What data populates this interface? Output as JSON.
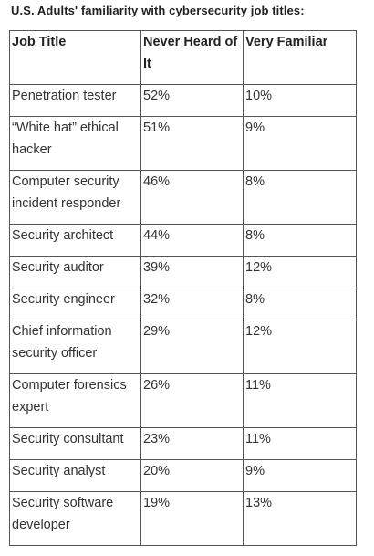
{
  "caption": "U.S. Adults' familiarity with cybersecurity job titles:",
  "headers": [
    "Job Title",
    "Never Heard of It",
    "Very Familiar"
  ],
  "rows": [
    {
      "title": "Penetration tester",
      "never": "52%",
      "familiar": "10%"
    },
    {
      "title": "“White hat” ethical hacker",
      "never": "51%",
      "familiar": "9%"
    },
    {
      "title": "Computer security incident responder",
      "never": "46%",
      "familiar": "8%"
    },
    {
      "title": "Security architect",
      "never": "44%",
      "familiar": "8%"
    },
    {
      "title": "Security auditor",
      "never": "39%",
      "familiar": "12%"
    },
    {
      "title": "Security engineer",
      "never": "32%",
      "familiar": "8%"
    },
    {
      "title": "Chief information security officer",
      "never": "29%",
      "familiar": "12%"
    },
    {
      "title": "Computer forensics expert",
      "never": "26%",
      "familiar": "11%"
    },
    {
      "title": "Security consultant",
      "never": "23%",
      "familiar": "11%"
    },
    {
      "title": "Security analyst",
      "never": "20%",
      "familiar": "9%"
    },
    {
      "title": "Security software developer",
      "never": "19%",
      "familiar": "13%"
    }
  ]
}
